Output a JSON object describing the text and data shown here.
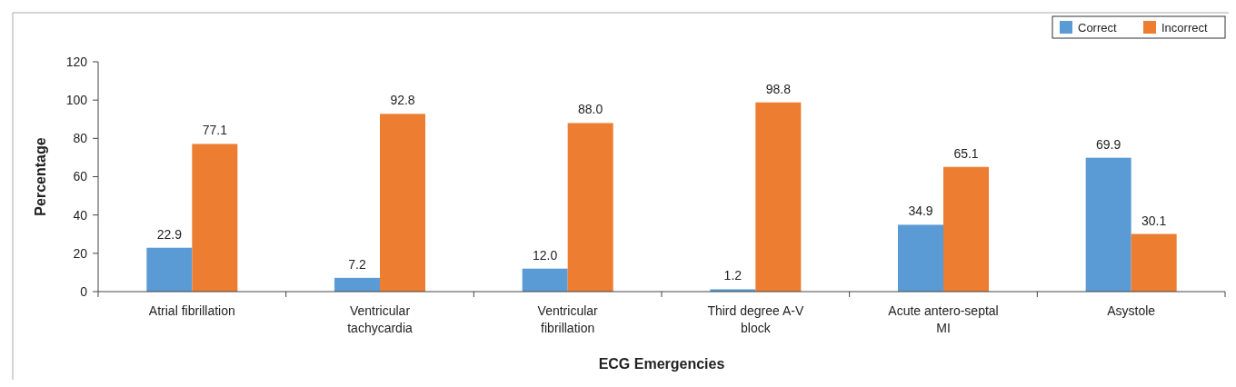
{
  "chart_data": {
    "type": "bar",
    "xlabel": "ECG Emergencies",
    "ylabel": "Percentage",
    "categories": [
      "Atrial fibrillation",
      "Ventricular tachycardia",
      "Ventricular fibrillation",
      "Third degree A-V block",
      "Acute antero-septal MI",
      "Asystole"
    ],
    "series": [
      {
        "name": "Correct",
        "color": "#5b9bd5",
        "values": [
          22.9,
          7.2,
          12.0,
          1.2,
          34.9,
          69.9
        ],
        "value_labels": [
          "22.9",
          "7.2",
          "12.0",
          "1.2",
          "34.9",
          "69.9"
        ]
      },
      {
        "name": "Incorrect",
        "color": "#ed7d31",
        "values": [
          77.1,
          92.8,
          88.0,
          98.8,
          65.1,
          30.1
        ],
        "value_labels": [
          "77.1",
          "92.8",
          "88.0",
          "98.8",
          "65.1",
          "30.1"
        ]
      }
    ],
    "ylim": [
      0,
      120
    ],
    "yticks": [
      0,
      20,
      40,
      60,
      80,
      100,
      120
    ],
    "grid": false,
    "legend": "top right"
  }
}
